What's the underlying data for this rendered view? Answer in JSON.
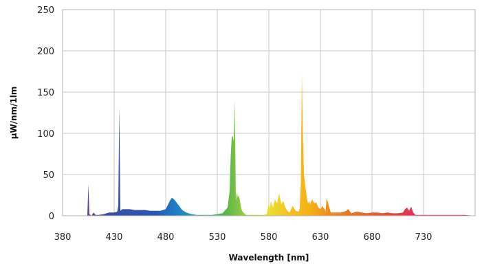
{
  "chart_data": {
    "type": "area",
    "title": "",
    "xlabel": "Wavelength [nm]",
    "ylabel": "µW/nm/1lm",
    "xlim": [
      380,
      780
    ],
    "ylim": [
      0,
      250
    ],
    "xticks": [
      380,
      430,
      480,
      530,
      580,
      630,
      680,
      730
    ],
    "yticks": [
      0,
      50,
      100,
      150,
      200,
      250
    ],
    "grid": true,
    "legend": "none",
    "color_stops": [
      {
        "nm": 400,
        "color": "#6a3fa0"
      },
      {
        "nm": 430,
        "color": "#3a4fa8"
      },
      {
        "nm": 470,
        "color": "#2757b0"
      },
      {
        "nm": 490,
        "color": "#1f7cc8"
      },
      {
        "nm": 510,
        "color": "#2aa6a0"
      },
      {
        "nm": 540,
        "color": "#5cb848"
      },
      {
        "nm": 560,
        "color": "#a8d040"
      },
      {
        "nm": 580,
        "color": "#e8e030"
      },
      {
        "nm": 600,
        "color": "#f6c020"
      },
      {
        "nm": 620,
        "color": "#f5b014"
      },
      {
        "nm": 640,
        "color": "#f08a1a"
      },
      {
        "nm": 670,
        "color": "#ea6a24"
      },
      {
        "nm": 700,
        "color": "#e54a3a"
      },
      {
        "nm": 720,
        "color": "#e2345a"
      },
      {
        "nm": 780,
        "color": "#d8284e"
      }
    ],
    "series": [
      {
        "x": [
          400,
          404,
          405,
          406,
          408,
          410,
          412,
          415,
          420,
          425,
          430,
          433,
          434,
          435,
          436,
          437,
          438,
          440,
          445,
          450,
          455,
          460,
          465,
          470,
          475,
          480,
          484,
          486,
          488,
          490,
          493,
          496,
          500,
          505,
          510,
          515,
          520,
          525,
          530,
          535,
          540,
          542,
          543,
          544,
          545,
          546,
          547,
          548,
          549,
          550,
          551,
          552,
          553,
          554,
          556,
          558,
          560,
          565,
          570,
          575,
          578,
          580,
          581,
          582,
          584,
          586,
          588,
          590,
          592,
          594,
          596,
          598,
          600,
          603,
          606,
          609,
          610,
          611,
          612,
          613,
          614,
          615,
          616,
          617,
          618,
          619,
          620,
          622,
          624,
          626,
          628,
          630,
          632,
          634,
          635,
          636,
          640,
          645,
          650,
          655,
          657,
          660,
          665,
          670,
          675,
          680,
          685,
          690,
          695,
          700,
          705,
          710,
          712,
          714,
          716,
          718,
          720,
          722,
          725,
          730,
          740,
          750,
          760,
          770,
          780
        ],
        "values": [
          0,
          0,
          38,
          2,
          0,
          4,
          1,
          1,
          2,
          4,
          4,
          5,
          12,
          132,
          6,
          7,
          8,
          8,
          8,
          7,
          7,
          7,
          6,
          6,
          6,
          8,
          18,
          22,
          20,
          17,
          12,
          7,
          4,
          2,
          1,
          1,
          1,
          1,
          2,
          3,
          10,
          30,
          72,
          95,
          97,
          90,
          140,
          18,
          28,
          22,
          25,
          18,
          10,
          6,
          3,
          1,
          1,
          1,
          1,
          1,
          2,
          16,
          8,
          18,
          10,
          20,
          15,
          27,
          14,
          18,
          10,
          6,
          4,
          12,
          6,
          5,
          10,
          40,
          172,
          100,
          50,
          40,
          30,
          20,
          15,
          18,
          14,
          20,
          15,
          16,
          10,
          8,
          12,
          8,
          5,
          22,
          4,
          4,
          4,
          6,
          8,
          3,
          5,
          4,
          3,
          4,
          4,
          3,
          4,
          3,
          3,
          4,
          8,
          10,
          6,
          11,
          4,
          1,
          1,
          1,
          1,
          1,
          1,
          1,
          0
        ]
      }
    ]
  }
}
